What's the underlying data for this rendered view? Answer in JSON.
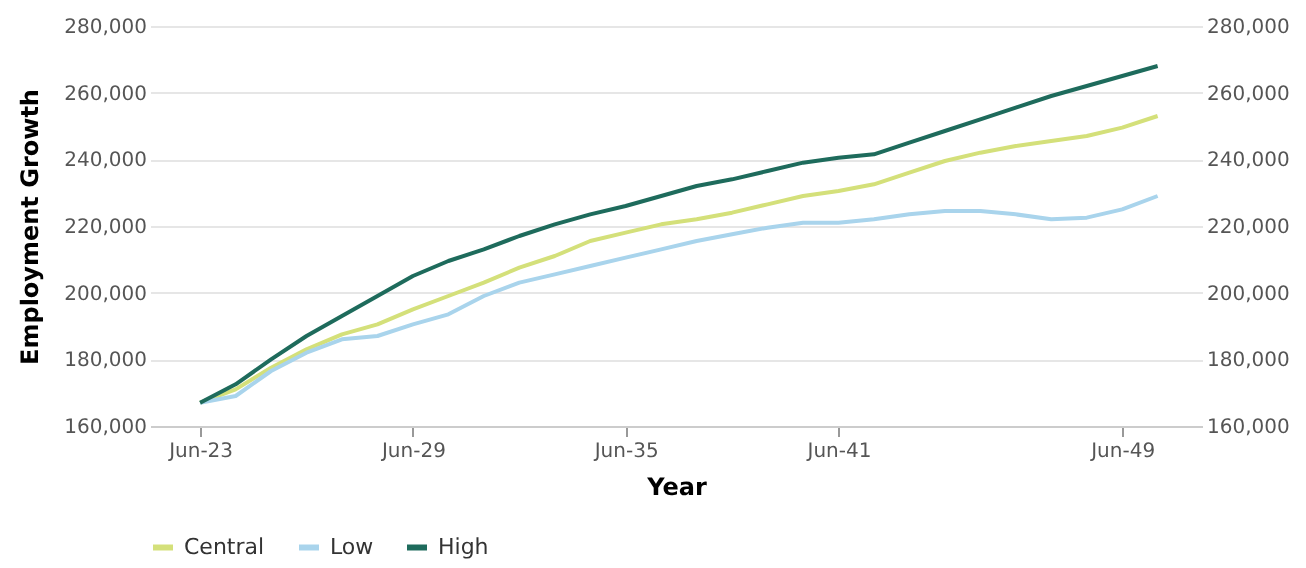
{
  "chart_data": {
    "type": "line",
    "xlabel": "Year",
    "ylabel": "Employment Growth",
    "x": [
      "2023-06",
      "2024-06",
      "2025-06",
      "2026-06",
      "2027-06",
      "2028-06",
      "2029-06",
      "2030-06",
      "2031-06",
      "2032-06",
      "2033-06",
      "2034-06",
      "2035-06",
      "2036-06",
      "2037-06",
      "2038-06",
      "2039-06",
      "2040-06",
      "2041-06",
      "2042-06",
      "2043-06",
      "2044-06",
      "2045-06",
      "2046-06",
      "2047-06",
      "2048-06",
      "2049-06",
      "2050-06"
    ],
    "series": [
      {
        "name": "Central",
        "color": "#d4e07a",
        "values": [
          167000,
          171000,
          177500,
          183000,
          187500,
          190500,
          195000,
          199000,
          203000,
          207500,
          211000,
          215500,
          218000,
          220500,
          222000,
          224000,
          226500,
          229000,
          230500,
          232500,
          236000,
          239500,
          242000,
          244000,
          245500,
          247000,
          249500,
          253000
        ]
      },
      {
        "name": "Low",
        "color": "#a9d4ec",
        "values": [
          167000,
          169000,
          176500,
          182000,
          186000,
          187000,
          190500,
          193500,
          199000,
          203000,
          205500,
          208000,
          210500,
          213000,
          215500,
          217500,
          219500,
          221000,
          221000,
          222000,
          223500,
          224500,
          224500,
          223500,
          222000,
          222500,
          225000,
          229000
        ]
      },
      {
        "name": "High",
        "color": "#1e6b5c",
        "values": [
          167000,
          172500,
          180000,
          187000,
          193000,
          199000,
          205000,
          209500,
          213000,
          217000,
          220500,
          223500,
          226000,
          229000,
          232000,
          234000,
          236500,
          239000,
          240500,
          241500,
          245000,
          248500,
          252000,
          255500,
          259000,
          262000,
          265000,
          268000
        ]
      }
    ],
    "xlim": [
      "2022-01",
      "2051-09"
    ],
    "xticks": [
      {
        "value": "2023-06",
        "label": "Jun-23"
      },
      {
        "value": "2029-06",
        "label": "Jun-29"
      },
      {
        "value": "2035-06",
        "label": "Jun-35"
      },
      {
        "value": "2041-06",
        "label": "Jun-41"
      },
      {
        "value": "2049-06",
        "label": "Jun-49"
      }
    ],
    "ylim": [
      160000,
      280000
    ],
    "yticks": [
      {
        "value": 160000,
        "label": "160,000"
      },
      {
        "value": 180000,
        "label": "180,000"
      },
      {
        "value": 200000,
        "label": "200,000"
      },
      {
        "value": 220000,
        "label": "220,000"
      },
      {
        "value": 240000,
        "label": "240,000"
      },
      {
        "value": 260000,
        "label": "260,000"
      },
      {
        "value": 280000,
        "label": "280,000"
      }
    ],
    "y2lim": [
      160000,
      280000
    ],
    "y2ticks": [
      {
        "value": 160000,
        "label": "160,000"
      },
      {
        "value": 180000,
        "label": "180,000"
      },
      {
        "value": 200000,
        "label": "200,000"
      },
      {
        "value": 220000,
        "label": "220,000"
      },
      {
        "value": 240000,
        "label": "240,000"
      },
      {
        "value": 260000,
        "label": "260,000"
      },
      {
        "value": 280000,
        "label": "280,000"
      }
    ],
    "grid": "y",
    "legend": "bottom",
    "marker": "none",
    "line_style": "solid"
  }
}
